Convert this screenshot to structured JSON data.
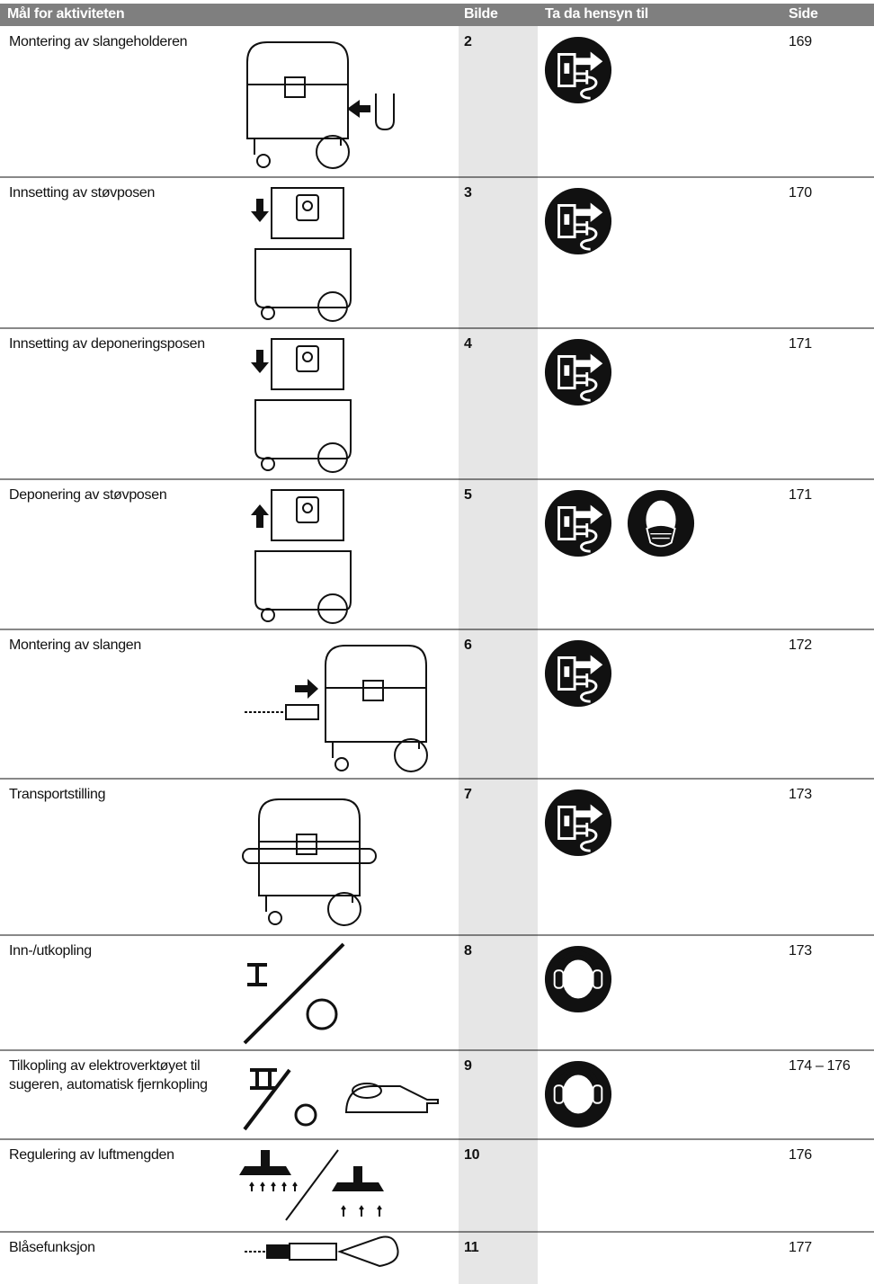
{
  "header": {
    "activity": "Mål for aktiviteten",
    "figure": "Bilde",
    "notes": "Ta da hensyn til",
    "page": "Side"
  },
  "rows": [
    {
      "activity": [
        "Montering av slangeholderen"
      ],
      "figure": "2",
      "page": "169"
    },
    {
      "activity": [
        "Innsetting av støvposen"
      ],
      "figure": "3",
      "page": "170"
    },
    {
      "activity": [
        "Innsetting av deponeringsposen"
      ],
      "figure": "4",
      "page": "171"
    },
    {
      "activity": [
        "Deponering av støvposen"
      ],
      "figure": "5",
      "page": "171"
    },
    {
      "activity": [
        "Montering av slangen"
      ],
      "figure": "6",
      "page": "172"
    },
    {
      "activity": [
        "Transportstilling"
      ],
      "figure": "7",
      "page": "173"
    },
    {
      "activity": [
        "Inn-/utkopling"
      ],
      "figure": "8",
      "page": "173"
    },
    {
      "activity": [
        "Tilkopling av elektroverktøyet til",
        "sugeren, automatisk fjernkopling"
      ],
      "figure": "9",
      "page": "174 – 176"
    },
    {
      "activity": [
        "Regulering av luftmengden"
      ],
      "figure": "10",
      "page": "176"
    },
    {
      "activity": [
        "Blåsefunksjon"
      ],
      "figure": "11",
      "page": "177"
    }
  ]
}
